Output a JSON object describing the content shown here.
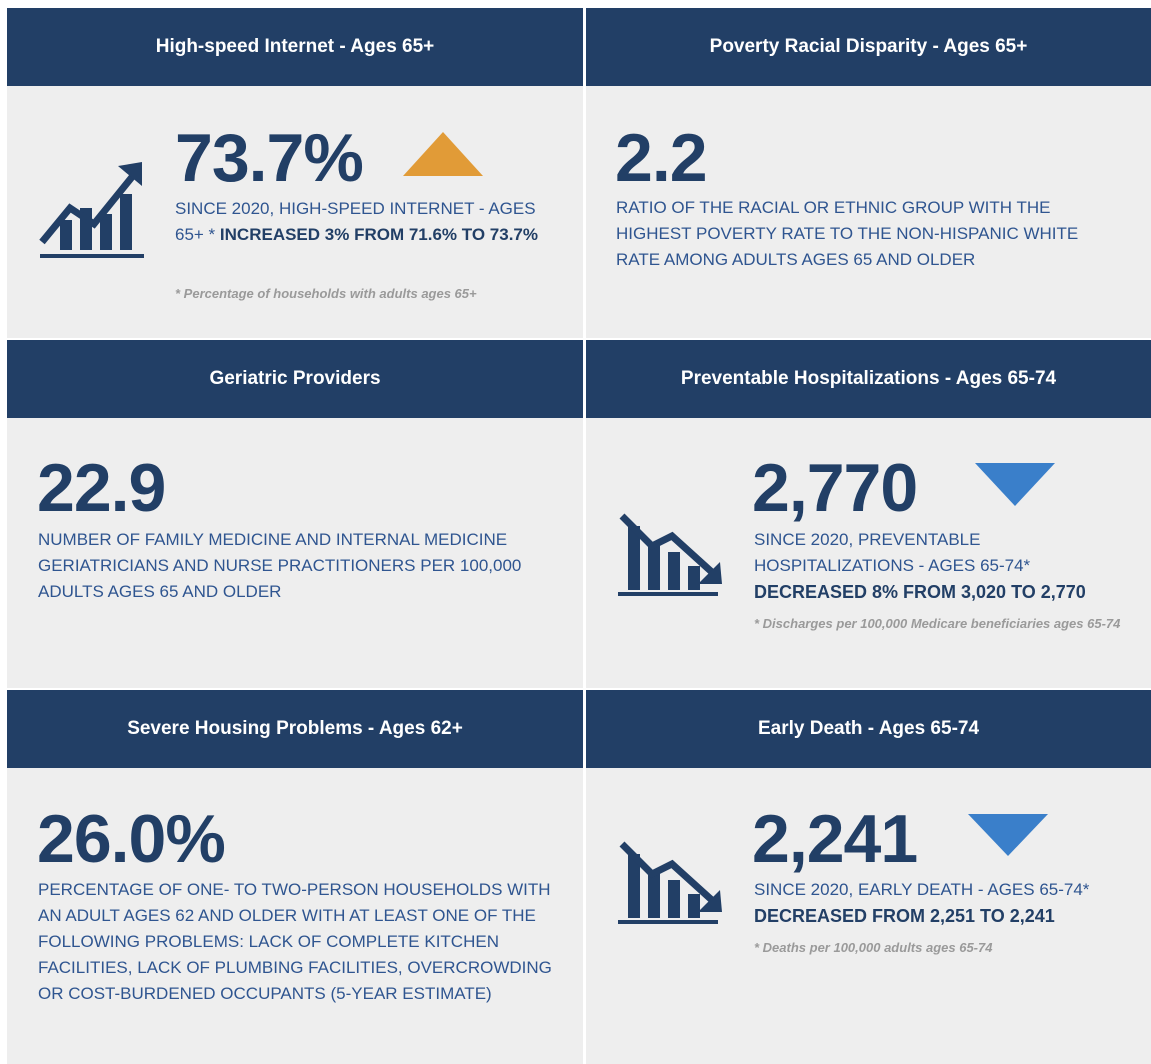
{
  "cards": [
    {
      "title": "High-speed Internet - Ages 65+",
      "value": "73.7%",
      "description": "SINCE 2020, HIGH-SPEED INTERNET - AGES 65+ *",
      "description_bold": "INCREASED 3% FROM 71.6% TO 73.7%",
      "note": "* Percentage of households with adults ages 65+"
    },
    {
      "title": "Poverty Racial Disparity - Ages 65+",
      "value": "2.2",
      "description": "RATIO OF THE RACIAL OR ETHNIC GROUP WITH THE HIGHEST POVERTY RATE TO THE NON-HISPANIC WHITE RATE AMONG ADULTS AGES 65 AND OLDER"
    },
    {
      "title": "Geriatric Providers",
      "value": "22.9",
      "description": "NUMBER OF FAMILY MEDICINE AND INTERNAL MEDICINE GERIATRICIANS AND NURSE PRACTITIONERS PER 100,000 ADULTS AGES 65 AND OLDER"
    },
    {
      "title": "Preventable Hospitalizations - Ages 65-74",
      "value": "2,770",
      "description": "SINCE 2020, PREVENTABLE HOSPITALIZATIONS - AGES 65-74*",
      "description_bold": "DECREASED 8% FROM 3,020 TO 2,770",
      "note": "* Discharges per 100,000 Medicare beneficiaries ages 65-74"
    },
    {
      "title": "Severe Housing Problems - Ages 62+",
      "value": "26.0%",
      "description": "PERCENTAGE OF ONE- TO TWO-PERSON HOUSEHOLDS WITH AN ADULT AGES 62 AND OLDER WITH AT LEAST ONE OF THE FOLLOWING PROBLEMS: LACK OF COMPLETE KITCHEN FACILITIES, LACK OF PLUMBING FACILITIES, OVERCROWDING OR COST-BURDENED OCCUPANTS (5-YEAR ESTIMATE)"
    },
    {
      "title": "Early Death - Ages 65-74",
      "value": "2,241",
      "description": "SINCE 2020, EARLY DEATH - AGES 65-74*",
      "description_bold": "DECREASED FROM 2,251 TO 2,241",
      "note": "* Deaths per 100,000 adults ages 65-74"
    }
  ]
}
